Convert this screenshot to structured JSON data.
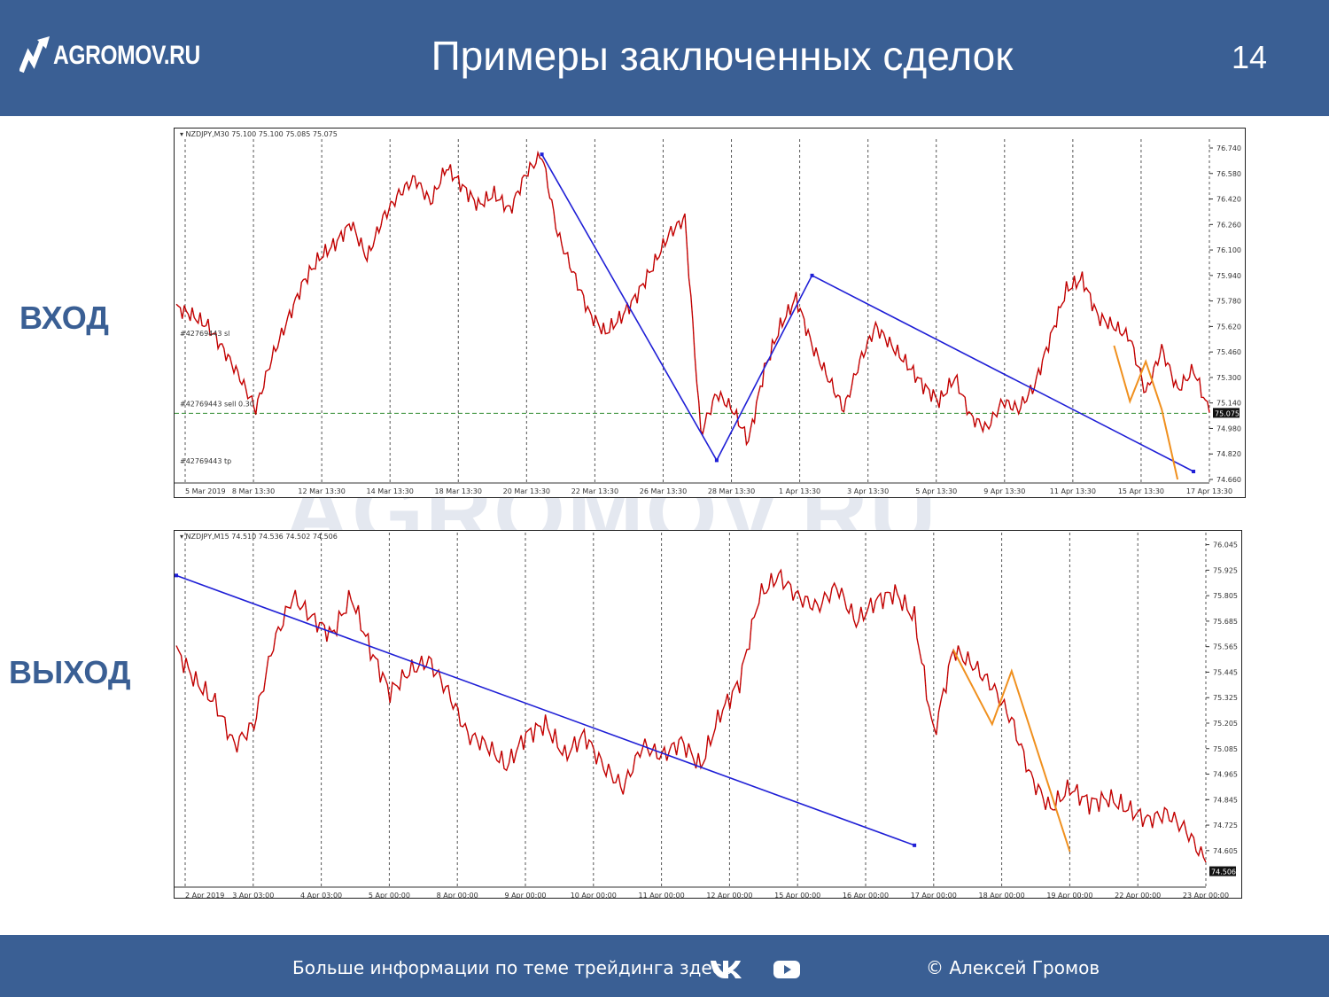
{
  "header": {
    "logo_text": "AGROMOV.RU",
    "title": "Примеры заключенных сделок",
    "page_number": "14"
  },
  "labels": {
    "entry": "ВХОД",
    "exit": "ВЫХОД"
  },
  "watermark": "AGROMOV.RU",
  "footer": {
    "more_info": "Больше информации по теме трейдинга здесь",
    "vk_icon": "vk-icon",
    "youtube_icon": "youtube-icon",
    "author": "© Алексей Громов"
  },
  "colors": {
    "brand": "#3a5f94",
    "candle": "#cc0000",
    "trendline": "#1f1fd6",
    "wave": "#f0901e",
    "level": "#2e8b2e"
  },
  "chart_data": [
    {
      "type": "line",
      "title": "NZDJPY,M30 75.100 75.100 75.085 75.075",
      "x_ticks": [
        "5 Mar 2019",
        "8 Mar 13:30",
        "12 Mar 13:30",
        "14 Mar 13:30",
        "18 Mar 13:30",
        "20 Mar 13:30",
        "22 Mar 13:30",
        "26 Mar 13:30",
        "28 Mar 13:30",
        "1 Apr 13:30",
        "3 Apr 13:30",
        "5 Apr 13:30",
        "9 Apr 13:30",
        "11 Apr 13:30",
        "15 Apr 13:30",
        "17 Apr 13:30"
      ],
      "y_ticks": [
        "76.740",
        "76.580",
        "76.420",
        "76.260",
        "76.100",
        "75.940",
        "75.780",
        "75.620",
        "75.460",
        "75.300",
        "75.140",
        "74.980",
        "74.820",
        "74.660"
      ],
      "ylim": [
        74.66,
        76.74
      ],
      "current_price": "75.075",
      "level_value": 75.075,
      "annotations": [
        "#42769443 sl",
        "#42769443 sell 0.30",
        "#42769443 tp"
      ],
      "series": [
        {
          "values": [
            75.74,
            75.69,
            75.62,
            75.47,
            75.3,
            75.1,
            75.42,
            75.66,
            75.9,
            76.05,
            76.14,
            76.27,
            76.05,
            76.3,
            76.45,
            76.55,
            76.4,
            76.62,
            76.5,
            76.38,
            76.45,
            76.35,
            76.58,
            76.7,
            76.2,
            75.95,
            75.7,
            75.58,
            75.68,
            75.82,
            76.0,
            76.2,
            76.3,
            74.95,
            75.2,
            75.1,
            74.9,
            75.35,
            75.62,
            75.8,
            75.5,
            75.3,
            75.1,
            75.4,
            75.62,
            75.5,
            75.38,
            75.25,
            75.15,
            75.3,
            75.05,
            74.98,
            75.15,
            75.1,
            75.25,
            75.55,
            75.85,
            75.92,
            75.68,
            75.62,
            75.55,
            75.2,
            75.48,
            75.22,
            75.35,
            75.08
          ]
        }
      ],
      "trendline": [
        {
          "x_index": 23,
          "y": 76.7
        },
        {
          "x_index": 34,
          "y": 74.78
        },
        {
          "x_index": 40,
          "y": 75.94
        },
        {
          "x_index": 64,
          "y": 74.71
        }
      ],
      "orange_wave": [
        {
          "x_index": 59,
          "y": 75.5
        },
        {
          "x_index": 60,
          "y": 75.15
        },
        {
          "x_index": 61,
          "y": 75.4
        },
        {
          "x_index": 62,
          "y": 75.1
        },
        {
          "x_index": 63,
          "y": 74.66
        }
      ]
    },
    {
      "type": "line",
      "title": "NZDJPY,M15 74.510 74.536 74.502 74.506",
      "x_ticks": [
        "2 Apr 2019",
        "3 Apr 03:00",
        "4 Apr 03:00",
        "5 Apr 00:00",
        "8 Apr 00:00",
        "9 Apr 00:00",
        "10 Apr 00:00",
        "11 Apr 00:00",
        "12 Apr 00:00",
        "15 Apr 00:00",
        "16 Apr 00:00",
        "17 Apr 00:00",
        "18 Apr 00:00",
        "19 Apr 00:00",
        "22 Apr 00:00",
        "23 Apr 00:00"
      ],
      "y_ticks": [
        "76.045",
        "75.925",
        "75.805",
        "75.685",
        "75.565",
        "75.445",
        "75.325",
        "75.205",
        "75.085",
        "74.965",
        "74.845",
        "74.725",
        "74.605"
      ],
      "ylim": [
        74.45,
        76.06
      ],
      "current_price": "74.506",
      "series": [
        {
          "values": [
            75.55,
            75.4,
            75.3,
            75.1,
            75.2,
            75.58,
            75.8,
            75.7,
            75.62,
            75.8,
            75.55,
            75.35,
            75.45,
            75.5,
            75.35,
            75.15,
            75.1,
            75.0,
            75.15,
            75.2,
            75.05,
            75.15,
            75.0,
            74.9,
            75.1,
            75.05,
            75.12,
            75.0,
            75.25,
            75.4,
            75.8,
            75.9,
            75.8,
            75.75,
            75.85,
            75.68,
            75.78,
            75.82,
            75.7,
            75.15,
            75.55,
            75.48,
            75.38,
            75.22,
            74.95,
            74.8,
            74.9,
            74.83,
            74.85,
            74.8,
            74.75,
            74.78,
            74.7,
            74.55
          ]
        }
      ],
      "trendline": [
        {
          "x_index": 0,
          "y": 75.9
        },
        {
          "x_index": 38,
          "y": 74.63
        }
      ],
      "orange_wave": [
        {
          "x_index": 40,
          "y": 75.55
        },
        {
          "x_index": 42,
          "y": 75.2
        },
        {
          "x_index": 43,
          "y": 75.45
        },
        {
          "x_index": 46,
          "y": 74.6
        }
      ]
    }
  ]
}
